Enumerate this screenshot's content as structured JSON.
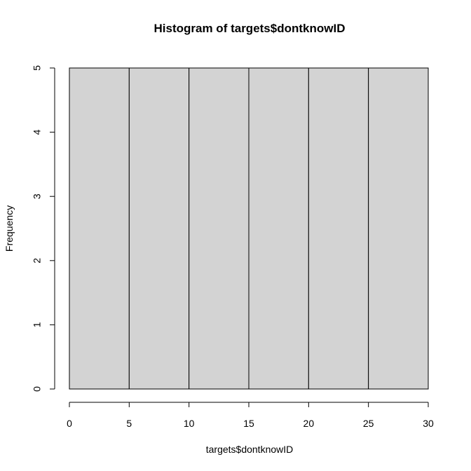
{
  "chart_data": {
    "type": "bar",
    "title": "Histogram of targets$dontknowID",
    "xlabel": "targets$dontknowID",
    "ylabel": "Frequency",
    "bins": [
      {
        "start": 0,
        "end": 5,
        "count": 5
      },
      {
        "start": 5,
        "end": 10,
        "count": 5
      },
      {
        "start": 10,
        "end": 15,
        "count": 5
      },
      {
        "start": 15,
        "end": 20,
        "count": 5
      },
      {
        "start": 20,
        "end": 25,
        "count": 5
      },
      {
        "start": 25,
        "end": 30,
        "count": 5
      }
    ],
    "xlim": [
      0,
      30
    ],
    "ylim": [
      0,
      5
    ],
    "xticks": [
      "0",
      "5",
      "10",
      "15",
      "20",
      "25",
      "30"
    ],
    "yticks": [
      "0",
      "1",
      "2",
      "3",
      "4",
      "5"
    ],
    "grid": false,
    "bar_fill": "#d3d3d3",
    "bar_stroke": "#000000"
  }
}
